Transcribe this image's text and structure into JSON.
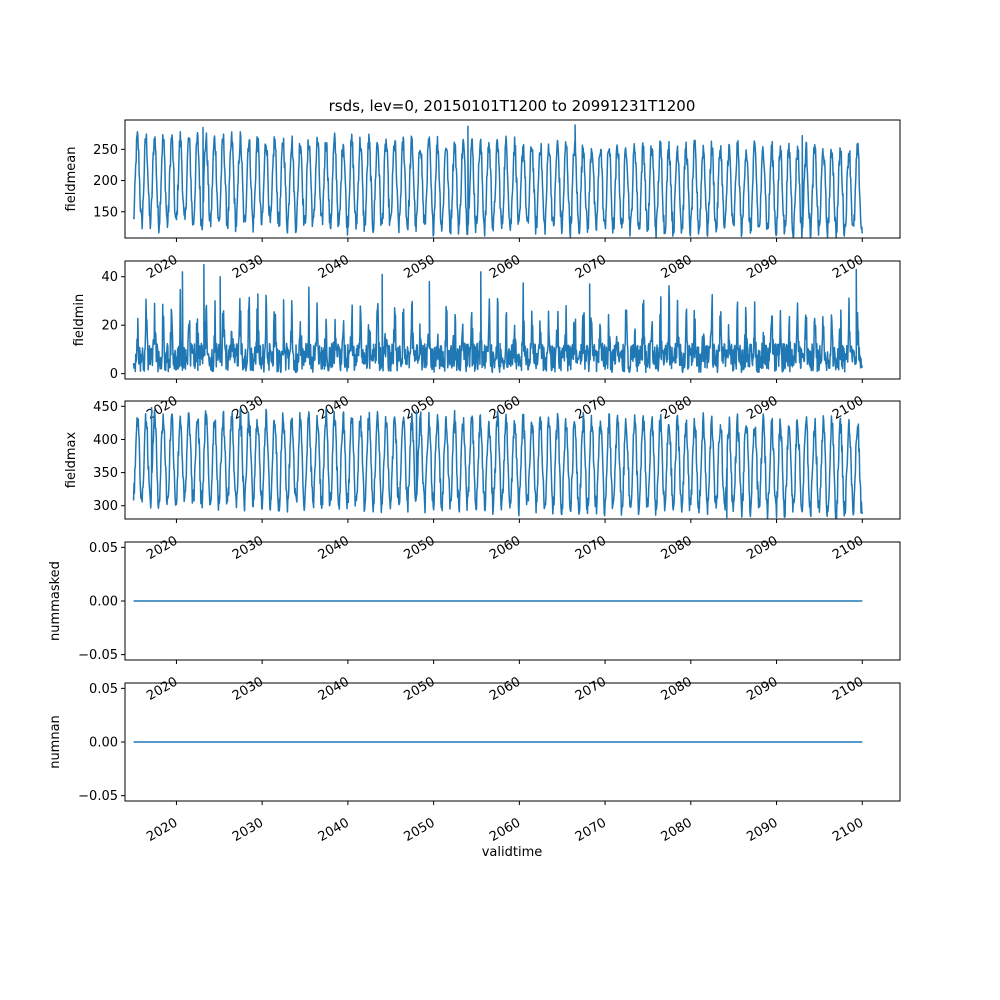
{
  "title": "rsds, lev=0, 20150101T1200 to 20991231T1200",
  "xlabel": "validtime",
  "colors": {
    "line": "#1f77b4",
    "axis": "#000000",
    "background": "#ffffff"
  },
  "chart_data": [
    {
      "type": "line",
      "ylabel": "fieldmean",
      "xlim": [
        2014.0,
        2104.4
      ],
      "ylim": [
        108,
        297
      ],
      "x_ticks": [
        2020,
        2030,
        2040,
        2050,
        2060,
        2070,
        2080,
        2090,
        2100
      ],
      "x_tick_labels": [
        "2020",
        "2030",
        "2040",
        "2050",
        "2060",
        "2070",
        "2080",
        "2090",
        "2100"
      ],
      "y_ticks": [
        150,
        200,
        250
      ],
      "y_tick_labels": [
        "150",
        "200",
        "250"
      ],
      "x_range": [
        2015.0,
        2100.0
      ],
      "envelope": {
        "min_start": 125,
        "min_end": 112,
        "max_start": 275,
        "max_end": 255,
        "typical_peak": 270,
        "typical_trough": 130
      },
      "spikes": [
        {
          "x": 2023.1,
          "y": 285
        },
        {
          "x": 2054.0,
          "y": 287
        },
        {
          "x": 2066.5,
          "y": 289
        },
        {
          "x": 2093.0,
          "y": 272
        }
      ],
      "cycles_per_year": 1
    },
    {
      "type": "line",
      "ylabel": "fieldmin",
      "xlim": [
        2014.0,
        2104.4
      ],
      "ylim": [
        -2.2,
        46.5
      ],
      "x_ticks": [
        2020,
        2030,
        2040,
        2050,
        2060,
        2070,
        2080,
        2090,
        2100
      ],
      "x_tick_labels": [
        "2020",
        "2030",
        "2040",
        "2050",
        "2060",
        "2070",
        "2080",
        "2090",
        "2100"
      ],
      "y_ticks": [
        0,
        20,
        40
      ],
      "y_tick_labels": [
        "0",
        "20",
        "40"
      ],
      "x_range": [
        2015.0,
        2100.0
      ],
      "envelope": {
        "min_start": 0.5,
        "min_end": 0.5,
        "max_start": 30,
        "max_end": 25,
        "typical_peak": 30,
        "typical_trough": 1
      },
      "spikes": [
        {
          "x": 2020.7,
          "y": 42
        },
        {
          "x": 2023.2,
          "y": 45
        },
        {
          "x": 2025.1,
          "y": 40
        },
        {
          "x": 2044.0,
          "y": 41
        },
        {
          "x": 2049.5,
          "y": 38
        },
        {
          "x": 2055.5,
          "y": 42
        },
        {
          "x": 2068.2,
          "y": 37
        },
        {
          "x": 2099.3,
          "y": 43
        }
      ],
      "cycles_per_year": 1
    },
    {
      "type": "line",
      "ylabel": "fieldmax",
      "xlim": [
        2014.0,
        2104.4
      ],
      "ylim": [
        280,
        458
      ],
      "x_ticks": [
        2020,
        2030,
        2040,
        2050,
        2060,
        2070,
        2080,
        2090,
        2100
      ],
      "x_tick_labels": [
        "2020",
        "2030",
        "2040",
        "2050",
        "2060",
        "2070",
        "2080",
        "2090",
        "2100"
      ],
      "y_ticks": [
        300,
        350,
        400,
        450
      ],
      "y_tick_labels": [
        "300",
        "350",
        "400",
        "450"
      ],
      "x_range": [
        2015.0,
        2100.0
      ],
      "envelope": {
        "min_start": 300,
        "min_end": 285,
        "max_start": 440,
        "max_end": 430,
        "typical_peak": 440,
        "typical_trough": 300
      },
      "spikes": [
        {
          "x": 2017.1,
          "y": 448
        },
        {
          "x": 2048.0,
          "y": 443
        },
        {
          "x": 2084.2,
          "y": 282
        }
      ],
      "cycles_per_year": 1
    },
    {
      "type": "line",
      "ylabel": "nummasked",
      "xlim": [
        2014.0,
        2104.4
      ],
      "ylim": [
        -0.055,
        0.055
      ],
      "x_ticks": [
        2020,
        2030,
        2040,
        2050,
        2060,
        2070,
        2080,
        2090,
        2100
      ],
      "x_tick_labels": [
        "2020",
        "2030",
        "2040",
        "2050",
        "2060",
        "2070",
        "2080",
        "2090",
        "2100"
      ],
      "y_ticks": [
        -0.05,
        0.0,
        0.05
      ],
      "y_tick_labels": [
        "−0.05",
        "0.00",
        "0.05"
      ],
      "x": [
        2015.0,
        2100.0
      ],
      "y": [
        0.0,
        0.0
      ]
    },
    {
      "type": "line",
      "ylabel": "numnan",
      "xlim": [
        2014.0,
        2104.4
      ],
      "ylim": [
        -0.055,
        0.055
      ],
      "x_ticks": [
        2020,
        2030,
        2040,
        2050,
        2060,
        2070,
        2080,
        2090,
        2100
      ],
      "x_tick_labels": [
        "2020",
        "2030",
        "2040",
        "2050",
        "2060",
        "2070",
        "2080",
        "2090",
        "2100"
      ],
      "y_ticks": [
        -0.05,
        0.0,
        0.05
      ],
      "y_tick_labels": [
        "−0.05",
        "0.00",
        "0.05"
      ],
      "x": [
        2015.0,
        2100.0
      ],
      "y": [
        0.0,
        0.0
      ]
    }
  ]
}
